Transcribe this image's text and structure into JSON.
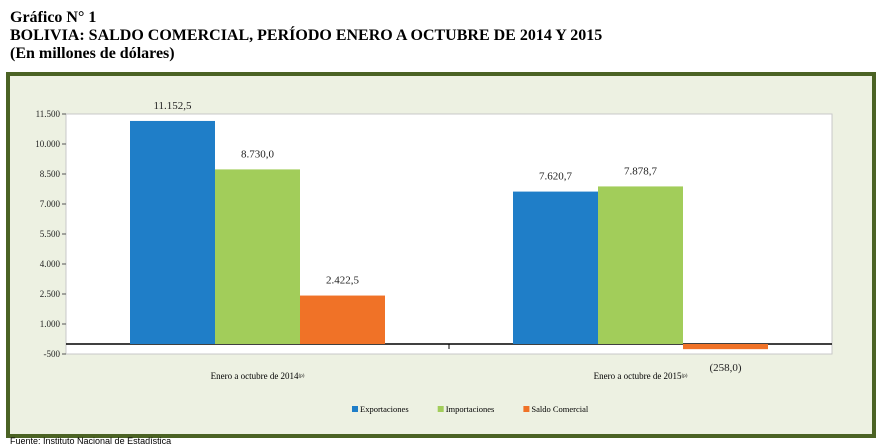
{
  "header": {
    "line1": "Gráfico N° 1",
    "line2": "BOLIVIA: SALDO COMERCIAL, PERÍODO ENERO A OCTUBRE DE 2014 Y 2015",
    "line3": "(En millones de dólares)"
  },
  "footer": {
    "source": "Fuente: Instituto Nacional de Estadística"
  },
  "chart_data": {
    "type": "bar",
    "categories": [
      "Enero a octubre de 2014",
      "Enero a octubre de 2015"
    ],
    "category_superscripts": [
      "(p)",
      "(p)"
    ],
    "series": [
      {
        "name": "Exportaciones",
        "values": [
          11152.5,
          7620.7
        ],
        "labels": [
          "11.152,5",
          "7.620,7"
        ],
        "color": "#1f7ec8"
      },
      {
        "name": "Importaciones",
        "values": [
          8730.0,
          7878.7
        ],
        "labels": [
          "8.730,0",
          "7.878,7"
        ],
        "color": "#a2cd5a"
      },
      {
        "name": "Saldo Comercial",
        "values": [
          2422.5,
          -258.0
        ],
        "labels": [
          "2.422,5",
          "(258,0)"
        ],
        "color": "#f07227"
      }
    ],
    "yticks": [
      -500,
      1000,
      2500,
      4000,
      5500,
      7000,
      8500,
      10000,
      11500
    ],
    "ytick_labels": [
      "-500",
      "1.000",
      "2.500",
      "4.000",
      "5.500",
      "7.000",
      "8.500",
      "10.000",
      "11.500"
    ],
    "ylim": [
      -500,
      11500
    ],
    "grid": false,
    "legend_position": "bottom"
  }
}
